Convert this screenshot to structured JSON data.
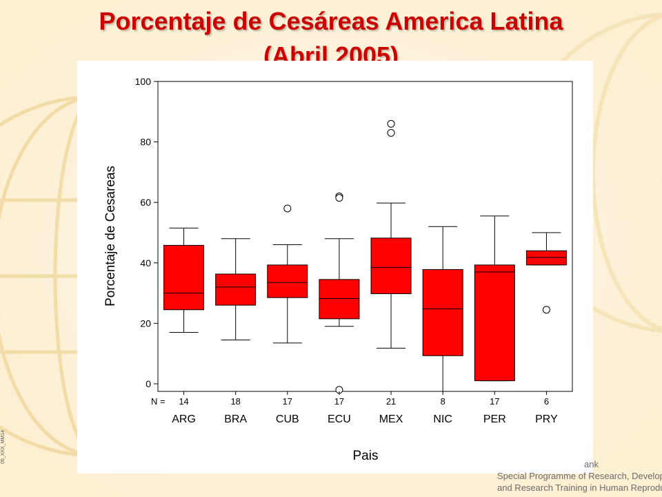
{
  "slide": {
    "title_line1": "Porcentaje de Cesáreas America Latina",
    "title_line2": "(Abril 2005)",
    "footer_bank": "ank",
    "footer_line1": "Special Programme of Research, Development",
    "footer_line2": "and Research Training in Human Reproduction",
    "code": "05_XXX_MM14"
  },
  "colors": {
    "title": "#cc0000",
    "box_fill": "#ff0000",
    "background": "#fdf3dc"
  },
  "chart_data": {
    "type": "boxplot",
    "ylabel": "Porcentaje de Cesareas",
    "xlabel": "Pais",
    "n_label": "N =",
    "ylim": [
      0,
      100
    ],
    "yticks": [
      0,
      20,
      40,
      60,
      80,
      100
    ],
    "categories": [
      "ARG",
      "BRA",
      "CUB",
      "ECU",
      "MEX",
      "NIC",
      "PER",
      "PRY"
    ],
    "n": [
      "14",
      "18",
      "17",
      "17",
      "21",
      "8",
      "17",
      "6"
    ],
    "boxes": [
      {
        "min": 17,
        "q1": 24.5,
        "median": 30,
        "q3": 45.8,
        "max": 51.5,
        "outliers": []
      },
      {
        "min": 14.5,
        "q1": 26,
        "median": 32,
        "q3": 36.3,
        "max": 48,
        "outliers": []
      },
      {
        "min": 13.5,
        "q1": 28.5,
        "median": 33.5,
        "q3": 39.3,
        "max": 46,
        "outliers": [
          58
        ]
      },
      {
        "min": 19,
        "q1": 21.5,
        "median": 28.2,
        "q3": 34.5,
        "max": 48,
        "outliers": [
          62,
          61.5,
          -2
        ]
      },
      {
        "min": 11.8,
        "q1": 29.8,
        "median": 38.5,
        "q3": 48.2,
        "max": 59.8,
        "outliers": [
          86,
          83
        ]
      },
      {
        "min": -3,
        "q1": 9.3,
        "median": 24.8,
        "q3": 37.8,
        "max": 52,
        "outliers": []
      },
      {
        "min": 1,
        "q1": 1,
        "median": 37,
        "q3": 39.3,
        "max": 55.5,
        "outliers": []
      },
      {
        "min": 39.3,
        "q1": 39.3,
        "median": 41.8,
        "q3": 44,
        "max": 50,
        "outliers": [
          24.5
        ]
      }
    ]
  }
}
